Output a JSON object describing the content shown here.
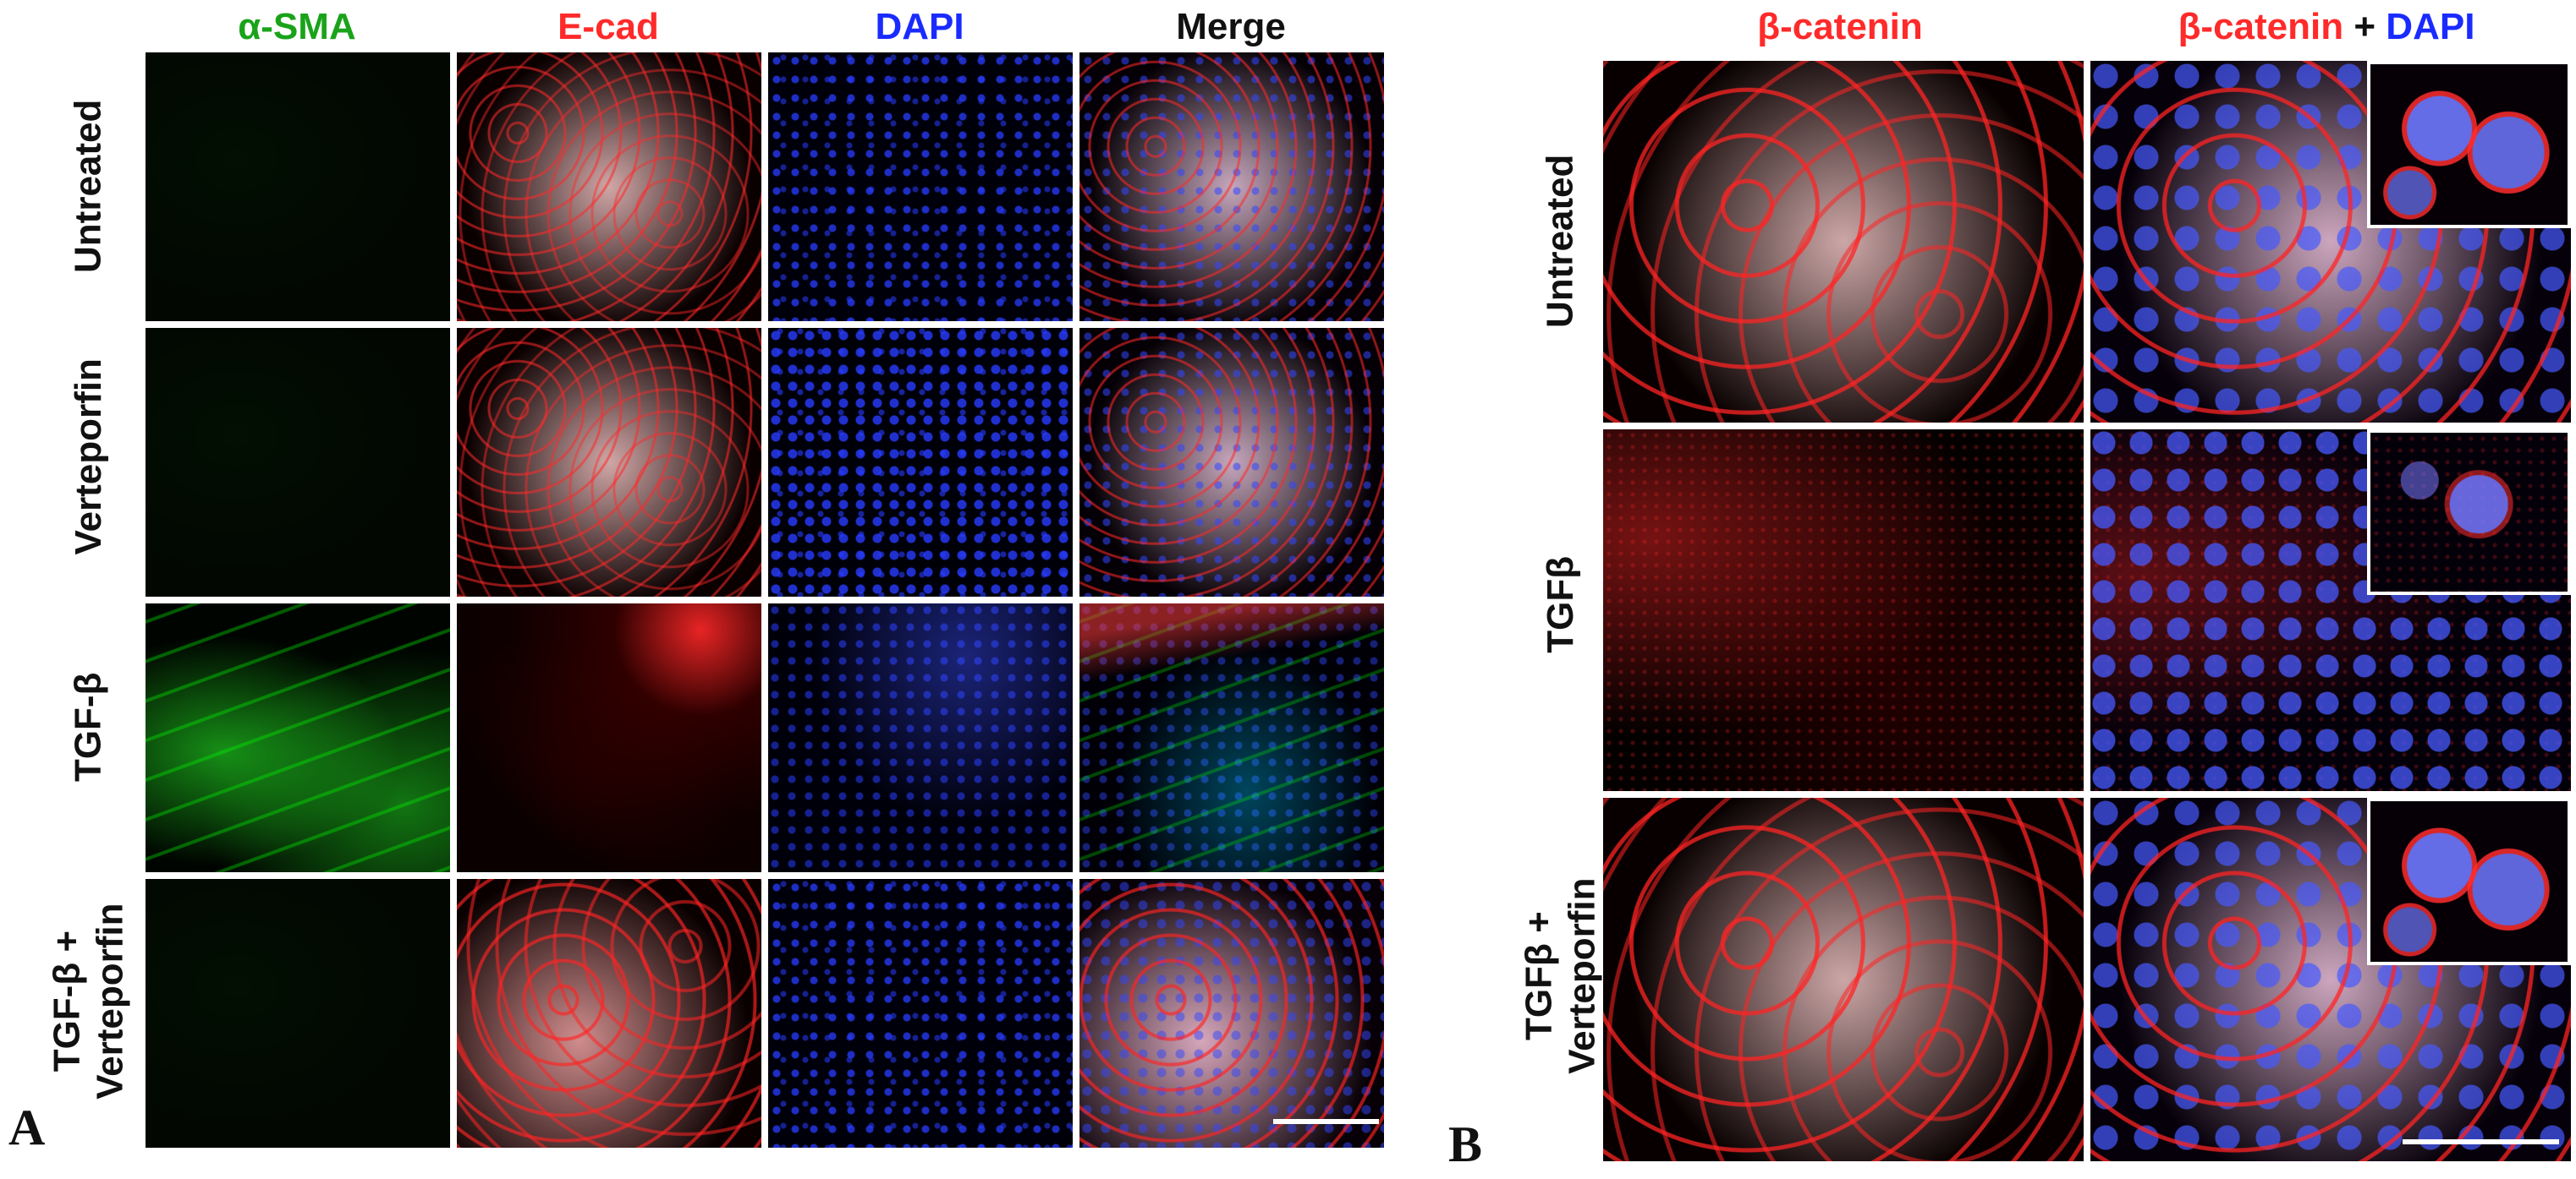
{
  "panelA": {
    "letter": "A",
    "columns": [
      "α-SMA",
      "E-cad",
      "DAPI",
      "Merge"
    ],
    "rows": [
      "Untreated",
      "Verteporfin",
      "TGF-β",
      "TGF-β +\nVerteporfin"
    ]
  },
  "panelB": {
    "letter": "B",
    "columns": {
      "beta_catenin": "β-catenin",
      "merge_beta": "β-catenin",
      "merge_plus": " + ",
      "merge_dapi": "DAPI"
    },
    "rows": [
      "Untreated",
      "TGFβ",
      "TGFβ +\nVerteporfin"
    ]
  },
  "colors": {
    "green": "#1aa31a",
    "red": "#ff2a2a",
    "blue": "#1a2bff",
    "black": "#111111"
  }
}
